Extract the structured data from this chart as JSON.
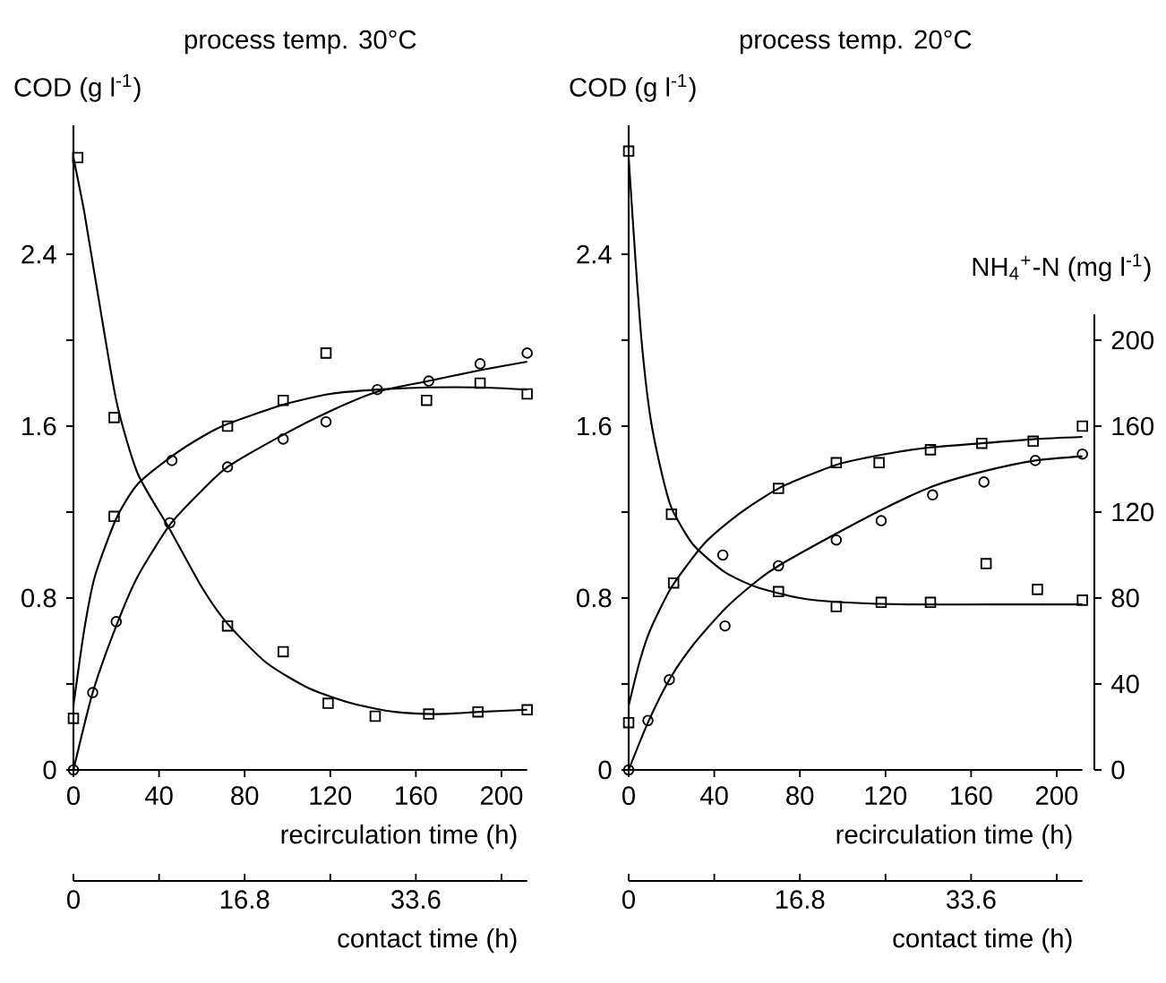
{
  "chart_data": [
    {
      "type": "scatter",
      "title": "process temp. 30°C",
      "ylabel": "COD (g l$^{-1}$)",
      "xlabel": "recirculation time (h)",
      "x2label": "contact time (h)",
      "xlim": [
        0,
        212
      ],
      "xticks": [
        0,
        40,
        80,
        120,
        160,
        200
      ],
      "x2lim": [
        0,
        44.52
      ],
      "x2ticks": [
        0,
        {
          "value": 8.4,
          "label": null
        },
        16.8,
        {
          "value": 25.2,
          "label": null
        },
        33.6,
        {
          "value": 42,
          "label": null
        }
      ],
      "ylim": [
        0,
        3.0
      ],
      "yticks": [
        0,
        {
          "value": 0.4,
          "label": null
        },
        0.8,
        {
          "value": 1.2,
          "label": null
        },
        1.6,
        {
          "value": 2.0,
          "label": null
        },
        2.4
      ],
      "series": [
        {
          "marker": "square",
          "color": "#000000",
          "x": [
            2,
            19,
            72,
            98,
            119,
            141,
            166,
            189,
            212
          ],
          "values": [
            2.85,
            1.64,
            0.67,
            0.55,
            0.31,
            0.25,
            0.26,
            0.27,
            0.28
          ]
        },
        {
          "marker": "square",
          "color": "#000000",
          "x": [
            0,
            19,
            72,
            98,
            118,
            165,
            190,
            212
          ],
          "values": [
            0.24,
            1.18,
            1.6,
            1.72,
            1.94,
            1.72,
            1.8,
            1.75
          ]
        },
        {
          "marker": "circle",
          "color": "#000000",
          "x": [
            0,
            9,
            20,
            45,
            46,
            72,
            98,
            118,
            142,
            166,
            190,
            212
          ],
          "values": [
            0,
            0.36,
            0.69,
            1.15,
            1.44,
            1.41,
            1.54,
            1.62,
            1.77,
            1.81,
            1.89,
            1.94
          ]
        },
        {
          "type": "line",
          "color": "#000000",
          "x": [
            0,
            5,
            10,
            20,
            30,
            45,
            60,
            72,
            90,
            110,
            130,
            150,
            170,
            190,
            212
          ],
          "values": [
            2.85,
            2.6,
            2.3,
            1.72,
            1.38,
            1.12,
            0.85,
            0.68,
            0.5,
            0.38,
            0.31,
            0.27,
            0.26,
            0.27,
            0.28
          ]
        },
        {
          "type": "line",
          "color": "#000000",
          "x": [
            0,
            5,
            10,
            20,
            30,
            46,
            60,
            72,
            98,
            120,
            142,
            165,
            190,
            212
          ],
          "values": [
            0.3,
            0.65,
            0.9,
            1.17,
            1.33,
            1.46,
            1.55,
            1.61,
            1.7,
            1.75,
            1.77,
            1.78,
            1.78,
            1.77
          ]
        },
        {
          "type": "line",
          "color": "#000000",
          "x": [
            0,
            9,
            20,
            30,
            45,
            60,
            72,
            98,
            120,
            142,
            166,
            190,
            212
          ],
          "values": [
            0,
            0.36,
            0.67,
            0.9,
            1.14,
            1.3,
            1.41,
            1.56,
            1.67,
            1.76,
            1.81,
            1.86,
            1.9
          ]
        }
      ]
    },
    {
      "type": "scatter",
      "title": "process temp. 20°C",
      "ylabel": "COD (g l$^{-1}$)",
      "y2label": "NH$_{4}$$^{+}$-N (mg l$^{-1}$)",
      "xlabel": "recirculation time (h)",
      "x2label": "contact time (h)",
      "xlim": [
        0,
        212
      ],
      "xticks": [
        0,
        40,
        80,
        120,
        160,
        200
      ],
      "x2lim": [
        0,
        44.52
      ],
      "x2ticks": [
        0,
        {
          "value": 8.4,
          "label": null
        },
        16.8,
        {
          "value": 25.2,
          "label": null
        },
        33.6,
        {
          "value": 42,
          "label": null
        }
      ],
      "ylim": [
        0,
        3.0
      ],
      "yticks": [
        0,
        {
          "value": 0.4,
          "label": null
        },
        0.8,
        {
          "value": 1.2,
          "label": null
        },
        1.6,
        {
          "value": 2.0,
          "label": null
        },
        2.4
      ],
      "y2lim": [
        0,
        212
      ],
      "y2ticks": [
        0,
        40,
        80,
        120,
        160,
        200
      ],
      "series": [
        {
          "marker": "square",
          "color": "#000000",
          "x": [
            0,
            20,
            70,
            97,
            118,
            141,
            167,
            191,
            212
          ],
          "values": [
            2.88,
            1.19,
            0.83,
            0.76,
            0.78,
            0.78,
            0.96,
            0.84,
            0.79
          ]
        },
        {
          "marker": "square",
          "color": "#000000",
          "x": [
            0,
            21,
            70,
            97,
            117,
            141,
            165,
            189,
            212
          ],
          "values": [
            0.22,
            0.87,
            1.31,
            1.43,
            1.43,
            1.49,
            1.52,
            1.53,
            1.6
          ]
        },
        {
          "marker": "circle",
          "color": "#000000",
          "x": [
            0,
            9,
            19,
            44,
            45,
            70,
            97,
            118,
            142,
            166,
            190,
            212
          ],
          "values": [
            0,
            0.23,
            0.42,
            1.0,
            0.67,
            0.95,
            1.07,
            1.16,
            1.28,
            1.34,
            1.44,
            1.47
          ]
        },
        {
          "type": "line",
          "color": "#000000",
          "x": [
            0,
            3,
            6,
            10,
            15,
            20,
            30,
            45,
            60,
            80,
            100,
            130,
            170,
            212
          ],
          "values": [
            2.85,
            2.4,
            2.0,
            1.65,
            1.4,
            1.22,
            1.05,
            0.92,
            0.85,
            0.8,
            0.78,
            0.77,
            0.77,
            0.77
          ]
        },
        {
          "type": "line",
          "color": "#000000",
          "x": [
            0,
            5,
            10,
            20,
            35,
            50,
            70,
            97,
            120,
            140,
            165,
            190,
            212
          ],
          "values": [
            0.3,
            0.5,
            0.65,
            0.85,
            1.05,
            1.18,
            1.31,
            1.42,
            1.47,
            1.5,
            1.52,
            1.54,
            1.55
          ]
        },
        {
          "type": "line",
          "color": "#000000",
          "x": [
            0,
            9,
            19,
            30,
            45,
            60,
            70,
            97,
            120,
            142,
            166,
            190,
            212
          ],
          "values": [
            0,
            0.22,
            0.42,
            0.58,
            0.75,
            0.88,
            0.95,
            1.1,
            1.22,
            1.32,
            1.39,
            1.44,
            1.46
          ]
        }
      ]
    }
  ]
}
